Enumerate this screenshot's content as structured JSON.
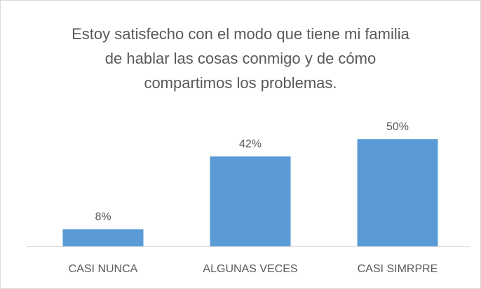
{
  "chart_data": {
    "type": "bar",
    "title": "Estoy satisfecho con el modo que tiene mi familia de hablar las cosas conmigo y de cómo compartimos los problemas.",
    "categories": [
      "CASI NUNCA",
      "ALGUNAS VECES",
      "CASI SIMRPRE"
    ],
    "values": [
      8,
      42,
      50
    ],
    "value_labels": [
      "8%",
      "42%",
      "50%"
    ],
    "color": "#5b9bd5"
  }
}
